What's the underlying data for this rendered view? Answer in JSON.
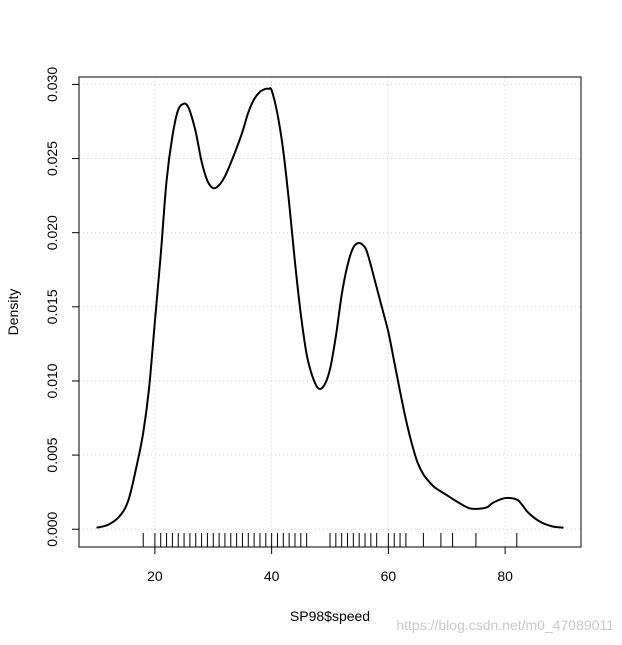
{
  "chart_data": {
    "type": "line",
    "title": "",
    "xlabel": "SP98$speed",
    "ylabel": "Density",
    "xlim": [
      7,
      93
    ],
    "ylim": [
      -0.0012,
      0.0305
    ],
    "grid": true,
    "x_ticks": [
      20,
      40,
      60,
      80
    ],
    "x_tick_labels": [
      "20",
      "40",
      "60",
      "80"
    ],
    "y_ticks": [
      0.0,
      0.005,
      0.01,
      0.015,
      0.02,
      0.025,
      0.03
    ],
    "y_tick_labels": [
      "0.000",
      "0.005",
      "0.010",
      "0.015",
      "0.020",
      "0.025",
      "0.030"
    ],
    "series": [
      {
        "name": "",
        "color": "#000000",
        "x": [
          10,
          12,
          14,
          15.5,
          17,
          18,
          19,
          20,
          21,
          22,
          23,
          24,
          25,
          25.5,
          26,
          27,
          28,
          29,
          30,
          31,
          32,
          33,
          34,
          35,
          36,
          37,
          38,
          39,
          39.5,
          40,
          41,
          42,
          43,
          44,
          45,
          46,
          47,
          48,
          49,
          50,
          51,
          52,
          53,
          54,
          55,
          56,
          56.5,
          57,
          58,
          59,
          60,
          61,
          62,
          63,
          64,
          65,
          66,
          67,
          68,
          70,
          72,
          74,
          76,
          77,
          78,
          80,
          82,
          83,
          84,
          86,
          88,
          90
        ],
        "values": [
          0.0001,
          0.0003,
          0.0009,
          0.002,
          0.0045,
          0.0065,
          0.0095,
          0.014,
          0.0185,
          0.0235,
          0.0265,
          0.0283,
          0.0287,
          0.0286,
          0.0282,
          0.0268,
          0.0248,
          0.0235,
          0.023,
          0.0232,
          0.0238,
          0.0247,
          0.0257,
          0.0268,
          0.0281,
          0.029,
          0.0295,
          0.0297,
          0.0297,
          0.0296,
          0.028,
          0.0255,
          0.022,
          0.018,
          0.0145,
          0.0118,
          0.0103,
          0.0095,
          0.0097,
          0.0108,
          0.013,
          0.0158,
          0.0178,
          0.019,
          0.0193,
          0.019,
          0.0185,
          0.0178,
          0.0163,
          0.0148,
          0.0133,
          0.0113,
          0.0093,
          0.0074,
          0.0058,
          0.0045,
          0.0037,
          0.0032,
          0.0028,
          0.0023,
          0.0018,
          0.0014,
          0.0014,
          0.0015,
          0.0018,
          0.0021,
          0.002,
          0.0016,
          0.0011,
          0.0005,
          0.0002,
          0.0001
        ]
      }
    ],
    "rug": [
      18,
      20,
      21,
      22,
      23,
      24,
      25,
      26,
      27,
      28,
      29,
      30,
      31,
      32,
      33,
      34,
      35,
      36,
      37,
      38,
      39,
      40,
      41,
      42,
      43,
      44,
      45,
      46,
      50,
      51,
      52,
      53,
      54,
      55,
      56,
      57,
      58,
      60,
      61,
      62,
      63,
      66,
      69,
      71,
      75,
      82
    ]
  },
  "watermark": "https://blog.csdn.net/m0_47089011"
}
